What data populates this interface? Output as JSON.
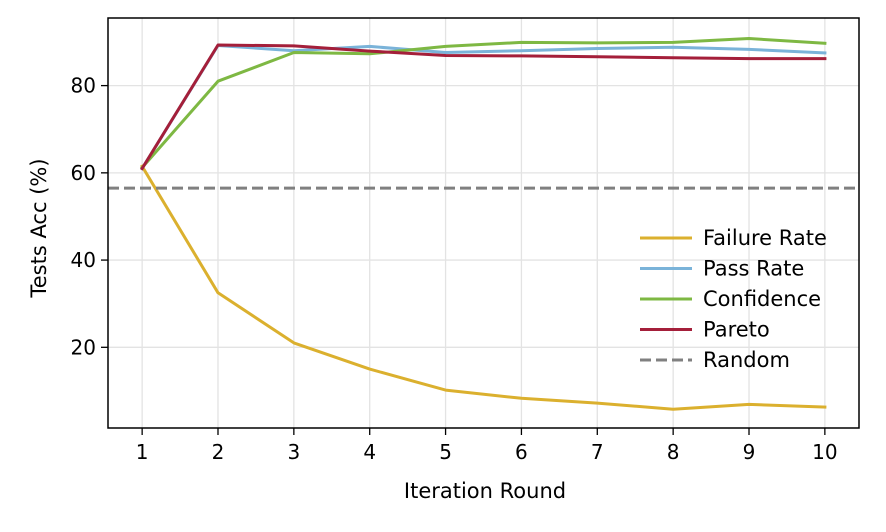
{
  "chart_data": {
    "type": "line",
    "title": "",
    "xlabel": "Iteration Round",
    "ylabel": "Tests Acc (%)",
    "x": [
      1,
      2,
      3,
      4,
      5,
      6,
      7,
      8,
      9,
      10
    ],
    "xlim": [
      0.55,
      10.45
    ],
    "ylim": [
      1.5,
      95.5
    ],
    "xticks": [
      1,
      2,
      3,
      4,
      5,
      6,
      7,
      8,
      9,
      10
    ],
    "yticks": [
      20,
      40,
      60,
      80
    ],
    "grid": true,
    "legend_position": "center-right",
    "series": [
      {
        "name": "Failure Rate",
        "color": "#dbb02e",
        "style": "solid",
        "values": [
          61.5,
          32.5,
          21.0,
          15.0,
          10.2,
          8.3,
          7.2,
          5.8,
          6.9,
          6.3
        ]
      },
      {
        "name": "Pass Rate",
        "color": "#7ab3d9",
        "style": "solid",
        "values": [
          61.0,
          89.2,
          88.0,
          89.0,
          87.6,
          88.0,
          88.5,
          88.8,
          88.3,
          87.5
        ]
      },
      {
        "name": "Confidence",
        "color": "#7eb843",
        "style": "solid",
        "values": [
          61.2,
          81.0,
          87.6,
          87.3,
          89.0,
          89.9,
          89.8,
          89.9,
          90.8,
          89.7
        ]
      },
      {
        "name": "Pareto",
        "color": "#a41f3a",
        "style": "solid",
        "values": [
          61.0,
          89.3,
          89.1,
          87.9,
          86.9,
          86.8,
          86.6,
          86.4,
          86.2,
          86.2
        ]
      },
      {
        "name": "Random",
        "color": "#808080",
        "style": "dashed",
        "values": [
          56.5,
          56.5,
          56.5,
          56.5,
          56.5,
          56.5,
          56.5,
          56.5,
          56.5,
          56.5
        ]
      }
    ]
  }
}
